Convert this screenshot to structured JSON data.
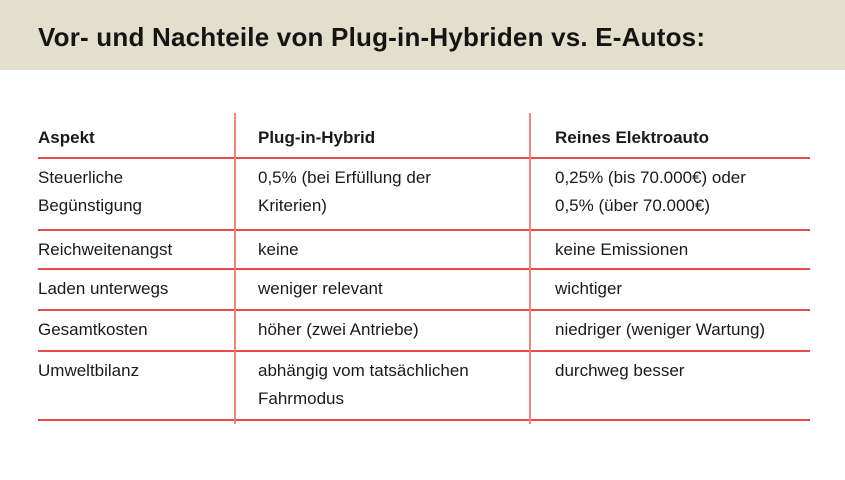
{
  "banner": {
    "title": "Vor- und Nachteile von Plug-in-Hybriden vs. E-Autos:",
    "background_color": "#e3dfcd",
    "text_color": "#141414"
  },
  "table": {
    "horizontal_line_color": "#e8494b",
    "vertical_line_color": "#f5827f",
    "text_color": "#1a1a1a",
    "columns": [
      "Aspekt",
      "Plug-in-Hybrid",
      "Reines Elektroauto"
    ],
    "rows": [
      {
        "aspect": "Steuerliche\nBegünstigung",
        "plugin_hybrid": "0,5% (bei Erfüllung der\nKriterien)",
        "elektroauto": "0,25% (bis 70.000€) oder\n0,5% (über 70.000€)"
      },
      {
        "aspect": "Reichweitenangst",
        "plugin_hybrid": "keine",
        "elektroauto": "keine Emissionen"
      },
      {
        "aspect": "Laden unterwegs",
        "plugin_hybrid": "weniger relevant",
        "elektroauto": "wichtiger"
      },
      {
        "aspect": "Gesamtkosten",
        "plugin_hybrid": "höher (zwei Antriebe)",
        "elektroauto": "niedriger (weniger Wartung)"
      },
      {
        "aspect": "Umweltbilanz",
        "plugin_hybrid": "abhängig vom tatsächlichen\nFahrmodus",
        "elektroauto": "durchweg besser"
      }
    ]
  },
  "chart_data": {
    "type": "table",
    "title": "Vor- und Nachteile von Plug-in-Hybriden vs. E-Autos:",
    "columns": [
      "Aspekt",
      "Plug-in-Hybrid",
      "Reines Elektroauto"
    ],
    "rows": [
      [
        "Steuerliche Begünstigung",
        "0,5% (bei Erfüllung der Kriterien)",
        "0,25% (bis 70.000€) oder 0,5% (über 70.000€)"
      ],
      [
        "Reichweitenangst",
        "keine",
        "keine Emissionen"
      ],
      [
        "Laden unterwegs",
        "weniger relevant",
        "wichtiger"
      ],
      [
        "Gesamtkosten",
        "höher (zwei Antriebe)",
        "niedriger (weniger Wartung)"
      ],
      [
        "Umweltbilanz",
        "abhängig vom tatsächlichen Fahrmodus",
        "durchweg besser"
      ]
    ]
  }
}
